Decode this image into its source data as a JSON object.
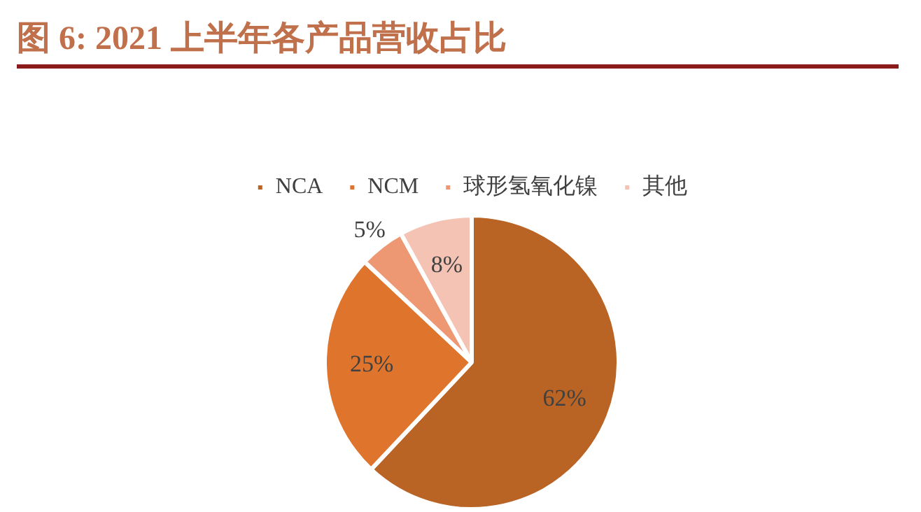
{
  "chart_data": {
    "type": "pie",
    "title": "图 6:  2021 上半年各产品营收占比",
    "categories": [
      "NCA",
      "NCM",
      "球形氢氧化镍",
      "其他"
    ],
    "values": [
      62,
      25,
      5,
      8
    ],
    "colors": [
      "#b96324",
      "#df752c",
      "#ed9873",
      "#f4c3b3"
    ],
    "value_labels": [
      "62%",
      "25%",
      "5%",
      "8%"
    ],
    "legend": "top"
  }
}
